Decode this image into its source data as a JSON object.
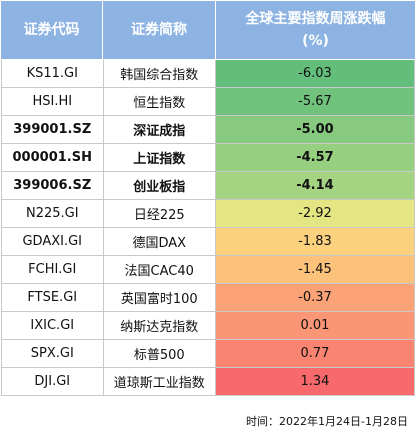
{
  "chart_data": {
    "type": "table",
    "columns": [
      "证券代码",
      "证券简称",
      "全球主要指数周涨跌幅",
      "(%)"
    ],
    "rows": [
      {
        "code": "KS11.GI",
        "name": "韩国综合指数",
        "value": -6.03,
        "display": "-6.03",
        "bold": false,
        "color": "#63BE7B"
      },
      {
        "code": "HSI.HI",
        "name": "恒生指数",
        "value": -5.67,
        "display": "-5.67",
        "bold": false,
        "color": "#70C27D"
      },
      {
        "code": "399001.SZ",
        "name": "深证成指",
        "value": -5.0,
        "display": "-5.00",
        "bold": true,
        "color": "#86C97F"
      },
      {
        "code": "000001.SH",
        "name": "上证指数",
        "value": -4.57,
        "display": "-4.57",
        "bold": true,
        "color": "#96CF80"
      },
      {
        "code": "399006.SZ",
        "name": "创业板指",
        "value": -4.14,
        "display": "-4.14",
        "bold": true,
        "color": "#A4D381"
      },
      {
        "code": "N225.GI",
        "name": "日经225",
        "value": -2.92,
        "display": "-2.92",
        "bold": false,
        "color": "#E3E683"
      },
      {
        "code": "GDAXI.GI",
        "name": "德国DAX",
        "value": -1.83,
        "display": "-1.83",
        "bold": false,
        "color": "#FBD17E"
      },
      {
        "code": "FCHI.GI",
        "name": "法国CAC40",
        "value": -1.45,
        "display": "-1.45",
        "bold": false,
        "color": "#FCC27B"
      },
      {
        "code": "FTSE.GI",
        "name": "英国富时100",
        "value": -0.37,
        "display": "-0.37",
        "bold": false,
        "color": "#FBA277"
      },
      {
        "code": "IXIC.GI",
        "name": "纳斯达克指数",
        "value": 0.01,
        "display": "0.01",
        "bold": false,
        "color": "#FA9575"
      },
      {
        "code": "SPX.GI",
        "name": "标普500",
        "value": 0.77,
        "display": "0.77",
        "bold": false,
        "color": "#F98471"
      },
      {
        "code": "DJI.GI",
        "name": "道琼斯工业指数",
        "value": 1.34,
        "display": "1.34",
        "bold": false,
        "color": "#F8696B"
      }
    ],
    "footnote": "时间：2022年1月24日-1月28日"
  }
}
